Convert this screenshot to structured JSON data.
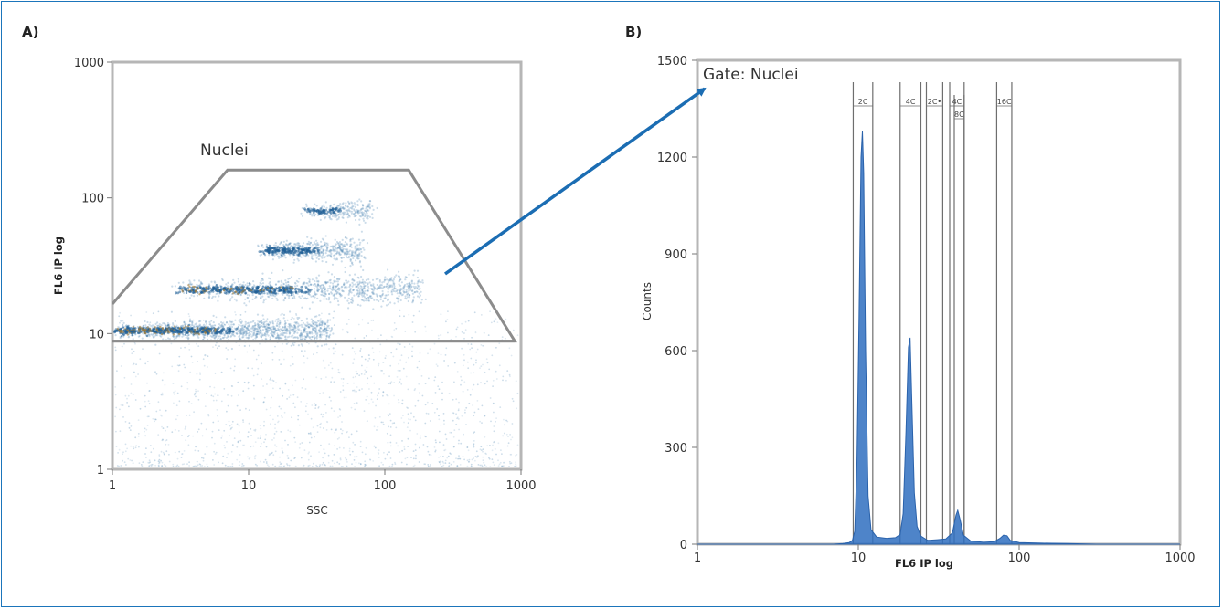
{
  "panel_a": {
    "label": "A)",
    "gate_label": "Nuclei",
    "colors": {
      "gate": "#8c8c8c",
      "cloud": "#5a8fb8",
      "dense": "#1f5f96",
      "core": "#9c7a3a"
    }
  },
  "panel_b": {
    "label": "B)",
    "gate_text": "Gate: Nuclei",
    "colors": {
      "fill": "#2f6fc0",
      "marker": "#6e6e6e"
    }
  },
  "arrow": {
    "color": "#1b6db3"
  },
  "chart_data": [
    {
      "type": "scatter",
      "title": "",
      "xlabel": "SSC",
      "ylabel": "FL6 IP log",
      "xscale": "log",
      "yscale": "log",
      "xlim": [
        1,
        1000
      ],
      "ylim": [
        1,
        1000
      ],
      "xticks": [
        "1",
        "10",
        "100",
        "1000"
      ],
      "yticks": [
        "1",
        "10",
        "100",
        "1000"
      ],
      "gate": {
        "name": "Nuclei",
        "vertices": [
          [
            1,
            16.5
          ],
          [
            7,
            160
          ],
          [
            150,
            160
          ],
          [
            900,
            8.8
          ],
          [
            1,
            8.8
          ]
        ]
      },
      "populations": [
        {
          "ploidy": "2C",
          "fl6": 10.5,
          "ssc_range": [
            1,
            40
          ]
        },
        {
          "ploidy": "4C",
          "fl6": 21,
          "ssc_range": [
            3,
            180
          ]
        },
        {
          "ploidy": "8C",
          "fl6": 41,
          "ssc_range": [
            12,
            70
          ]
        },
        {
          "ploidy": "16C",
          "fl6": 80,
          "ssc_range": [
            25,
            80
          ]
        }
      ]
    },
    {
      "type": "area",
      "title": "",
      "xlabel": "FL6 IP log",
      "ylabel": "Counts",
      "xscale": "log",
      "xlim": [
        1,
        1000
      ],
      "ylim": [
        0,
        1500
      ],
      "xticks": [
        "1",
        "10",
        "100",
        "1000"
      ],
      "yticks": [
        "0",
        "300",
        "600",
        "900",
        "1200",
        "1500"
      ],
      "annotation": "Gate: Nuclei",
      "peaks": [
        {
          "marker": "2C",
          "x": 10.5,
          "count": 1280
        },
        {
          "marker": "4C",
          "x": 20.8,
          "count": 640
        },
        {
          "marker": "8C",
          "x": 41.5,
          "count": 105
        },
        {
          "marker": "16C",
          "x": 82,
          "count": 30
        }
      ],
      "markers": [
        {
          "label": "2C",
          "x_range": [
            9.3,
            12.3
          ]
        },
        {
          "label": "4C",
          "x_range": [
            18.2,
            24.5
          ]
        },
        {
          "label": "2C•",
          "x_range": [
            26.5,
            33.5
          ]
        },
        {
          "label": "4C",
          "x_range": [
            37,
            45.5
          ]
        },
        {
          "label": "8C",
          "x_range": [
            39.5,
            45.5
          ]
        },
        {
          "label": "16C",
          "x_range": [
            72.5,
            90
          ]
        }
      ],
      "curve": [
        [
          1,
          0
        ],
        [
          7,
          0
        ],
        [
          8,
          2
        ],
        [
          8.8,
          5
        ],
        [
          9.2,
          12
        ],
        [
          9.5,
          40
        ],
        [
          9.8,
          250
        ],
        [
          10.1,
          700
        ],
        [
          10.4,
          1200
        ],
        [
          10.6,
          1280
        ],
        [
          10.8,
          1150
        ],
        [
          11.1,
          600
        ],
        [
          11.5,
          150
        ],
        [
          12,
          45
        ],
        [
          13,
          22
        ],
        [
          15,
          18
        ],
        [
          17,
          20
        ],
        [
          18.2,
          30
        ],
        [
          19,
          95
        ],
        [
          19.8,
          350
        ],
        [
          20.5,
          610
        ],
        [
          21,
          640
        ],
        [
          21.5,
          450
        ],
        [
          22.3,
          160
        ],
        [
          23.2,
          55
        ],
        [
          24.5,
          25
        ],
        [
          27,
          12
        ],
        [
          31,
          14
        ],
        [
          35,
          16
        ],
        [
          38.5,
          35
        ],
        [
          40.5,
          90
        ],
        [
          41.5,
          105
        ],
        [
          43,
          75
        ],
        [
          45,
          28
        ],
        [
          50,
          10
        ],
        [
          60,
          6
        ],
        [
          70,
          8
        ],
        [
          76,
          18
        ],
        [
          80,
          28
        ],
        [
          84,
          26
        ],
        [
          88,
          12
        ],
        [
          100,
          5
        ],
        [
          140,
          3
        ],
        [
          200,
          2
        ],
        [
          300,
          0
        ],
        [
          1000,
          0
        ]
      ]
    }
  ]
}
